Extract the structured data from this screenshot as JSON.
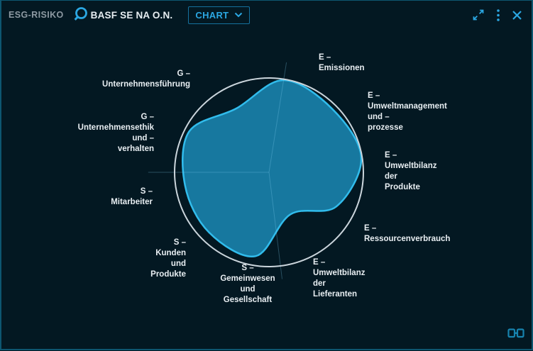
{
  "header": {
    "app_label": "ESG-RISIKO",
    "instrument": "BASF SE NA O.N.",
    "view_selector": {
      "label": "CHART"
    }
  },
  "colors": {
    "bg": "#031822",
    "border": "#0d5670",
    "accent": "#2ba7e2",
    "accent_dim": "#15719e",
    "muted": "#8d99a2",
    "text": "#e8eef2",
    "ring": "#cbd5dc",
    "radar_fill": "#17789f",
    "radar_stroke": "#31bcec",
    "spoke": "rgba(125,205,240,0.30)",
    "brand": "#1783ae"
  },
  "chart_data": {
    "type": "radar",
    "title": "ESG-RISIKO",
    "instrument": "BASF SE NA O.N.",
    "ylim": [
      0,
      100
    ],
    "grid": "single outer ring, no tick labels",
    "legend": "none",
    "start_angle_deg": 81,
    "step_deg": -36,
    "categories": [
      {
        "name": "E – Emissionen",
        "label": "E –\nEmissionen"
      },
      {
        "name": "E – Umweltmanagement und – prozesse",
        "label": "E –\nUmweltmanagement\nund –\nprozesse"
      },
      {
        "name": "E – Umweltbilanz der Produkte",
        "label": "E –\nUmweltbilanz\nder\nProdukte"
      },
      {
        "name": "E – Ressourcenverbrauch",
        "label": "E –\nRessourcenverbrauch"
      },
      {
        "name": "E – Umweltbilanz der Lieferanten",
        "label": "E –\nUmweltbilanz\nder\nLieferanten"
      },
      {
        "name": "S – Gemeinwesen und Gesellschaft",
        "label": "S –\nGemeinwesen\nund\nGesellschaft"
      },
      {
        "name": "S – Kunden und Produkte",
        "label": "S –\nKunden\nund\nProdukte"
      },
      {
        "name": "S – Mitarbeiter",
        "label": "S –\nMitarbeiter"
      },
      {
        "name": "G – Unternehmensethik und – verhalten",
        "label": "G –\nUnternehmensethik\nund –\nverhalten"
      },
      {
        "name": "G – Unternehmensführung",
        "label": "G –\nUnternehmensführung"
      }
    ],
    "values": [
      99,
      95,
      99,
      80,
      50,
      90,
      90,
      90,
      95,
      76
    ],
    "axis_lines": [
      {
        "deg": 81,
        "len": 1.18
      },
      {
        "deg": 180,
        "len": 1.28
      },
      {
        "deg": -83,
        "len": 1.14
      }
    ]
  }
}
